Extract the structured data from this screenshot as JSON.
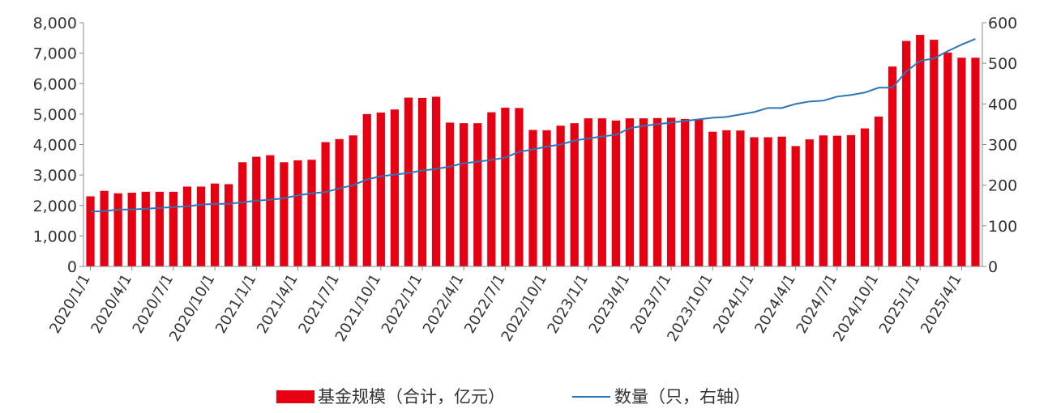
{
  "chart_data": {
    "type": "bar+line",
    "x": [
      "2020/1/1",
      "2020/2/1",
      "2020/3/1",
      "2020/4/1",
      "2020/5/1",
      "2020/6/1",
      "2020/7/1",
      "2020/8/1",
      "2020/9/1",
      "2020/10/1",
      "2020/11/1",
      "2020/12/1",
      "2021/1/1",
      "2021/2/1",
      "2021/3/1",
      "2021/4/1",
      "2021/5/1",
      "2021/6/1",
      "2021/7/1",
      "2021/8/1",
      "2021/9/1",
      "2021/10/1",
      "2021/11/1",
      "2021/12/1",
      "2022/1/1",
      "2022/2/1",
      "2022/3/1",
      "2022/4/1",
      "2022/5/1",
      "2022/6/1",
      "2022/7/1",
      "2022/8/1",
      "2022/9/1",
      "2022/10/1",
      "2022/11/1",
      "2022/12/1",
      "2023/1/1",
      "2023/2/1",
      "2023/3/1",
      "2023/4/1",
      "2023/5/1",
      "2023/6/1",
      "2023/7/1",
      "2023/8/1",
      "2023/9/1",
      "2023/10/1",
      "2023/11/1",
      "2023/12/1",
      "2024/1/1",
      "2024/2/1",
      "2024/3/1",
      "2024/4/1",
      "2024/5/1",
      "2024/6/1",
      "2024/7/1",
      "2024/8/1",
      "2024/9/1",
      "2024/10/1",
      "2024/11/1",
      "2024/12/1",
      "2025/1/1",
      "2025/2/1",
      "2025/3/1",
      "2025/4/1",
      "2025/5/1"
    ],
    "xtick_labels": [
      "2020/1/1",
      "2020/4/1",
      "2020/7/1",
      "2020/10/1",
      "2021/1/1",
      "2021/4/1",
      "2021/7/1",
      "2021/10/1",
      "2022/1/1",
      "2022/4/1",
      "2022/7/1",
      "2022/10/1",
      "2023/1/1",
      "2023/4/1",
      "2023/7/1",
      "2023/10/1",
      "2024/1/1",
      "2024/4/1",
      "2024/7/1",
      "2024/10/1",
      "2025/1/1",
      "2025/4/1"
    ],
    "series": [
      {
        "name": "基金规模（合计，亿元）",
        "type": "bar",
        "axis": "left",
        "color": "#e60012",
        "values": [
          2300,
          2480,
          2400,
          2420,
          2450,
          2450,
          2450,
          2620,
          2620,
          2720,
          2700,
          3420,
          3600,
          3650,
          3420,
          3480,
          3500,
          4080,
          4180,
          4300,
          5000,
          5050,
          5150,
          5540,
          5530,
          5570,
          4720,
          4700,
          4700,
          5060,
          5210,
          5200,
          4480,
          4470,
          4620,
          4700,
          4860,
          4860,
          4790,
          4860,
          4860,
          4870,
          4880,
          4840,
          4830,
          4420,
          4470,
          4460,
          4240,
          4240,
          4260,
          3950,
          4170,
          4300,
          4290,
          4310,
          4530,
          4920,
          6560,
          7400,
          7600,
          7440,
          7020,
          6850,
          6850
        ]
      },
      {
        "name": "数量（只，右轴）",
        "type": "line",
        "axis": "right",
        "color": "#2e75b6",
        "values": [
          135,
          136,
          140,
          140,
          142,
          144,
          146,
          148,
          152,
          154,
          154,
          158,
          162,
          164,
          168,
          175,
          180,
          183,
          192,
          200,
          214,
          222,
          226,
          230,
          236,
          240,
          246,
          254,
          258,
          262,
          268,
          282,
          288,
          295,
          300,
          310,
          315,
          320,
          324,
          340,
          346,
          350,
          354,
          358,
          362,
          366,
          368,
          374,
          380,
          390,
          390,
          400,
          406,
          408,
          418,
          422,
          428,
          440,
          440,
          480,
          506,
          512,
          530,
          546,
          560
        ]
      }
    ],
    "y_left": {
      "min": 0,
      "max": 8000,
      "ticks": [
        "0",
        "1,000",
        "2,000",
        "3,000",
        "4,000",
        "5,000",
        "6,000",
        "7,000",
        "8,000"
      ]
    },
    "y_right": {
      "min": 0,
      "max": 600,
      "ticks": [
        "0",
        "100",
        "200",
        "300",
        "400",
        "500",
        "600"
      ]
    },
    "legend": {
      "placement": "bottom-center",
      "items": [
        "基金规模（合计，亿元）",
        "数量（只，右轴）"
      ]
    },
    "grid": false
  }
}
